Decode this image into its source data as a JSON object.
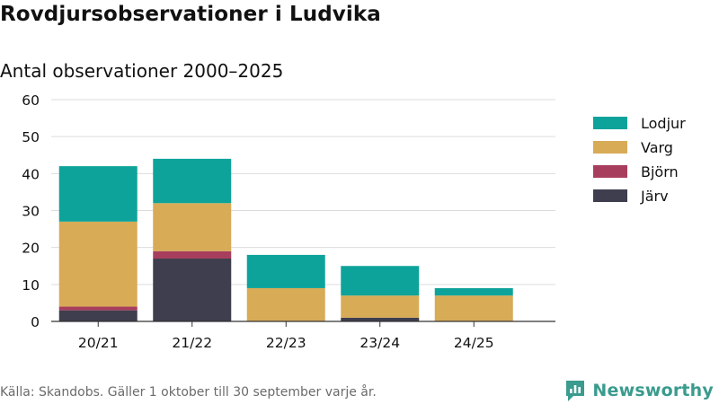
{
  "title": "Rovdjursobservationer i Ludvika",
  "subtitle": "Antal observationer 2000–2025",
  "source": "Källa: Skandobs. Gäller 1 oktober till 30 september varje år.",
  "brand": {
    "name": "Newsworthy",
    "icon": "newsworthy-logo-icon"
  },
  "colors": {
    "Lodjur": "#0ea39a",
    "Varg": "#d8ab57",
    "Björn": "#a83e5d",
    "Järv": "#3e3e4e"
  },
  "chart_data": {
    "type": "bar",
    "stacked": true,
    "title": "Rovdjursobservationer i Ludvika",
    "subtitle": "Antal observationer 2000–2025",
    "xlabel": "",
    "ylabel": "",
    "ylim": [
      0,
      60
    ],
    "yticks": [
      0,
      10,
      20,
      30,
      40,
      50,
      60
    ],
    "grid": true,
    "legend_position": "right",
    "categories": [
      "20/21",
      "21/22",
      "22/23",
      "23/24",
      "24/25"
    ],
    "series": [
      {
        "name": "Järv",
        "values": [
          3,
          17,
          0,
          1,
          0
        ]
      },
      {
        "name": "Björn",
        "values": [
          1,
          2,
          0,
          0,
          0
        ]
      },
      {
        "name": "Varg",
        "values": [
          23,
          13,
          9,
          6,
          7
        ]
      },
      {
        "name": "Lodjur",
        "values": [
          15,
          12,
          9,
          8,
          2
        ]
      }
    ],
    "legend_order": [
      "Lodjur",
      "Varg",
      "Björn",
      "Järv"
    ]
  }
}
